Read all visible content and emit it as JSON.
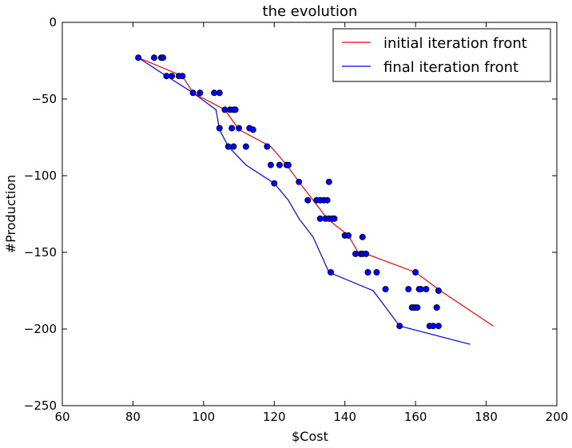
{
  "chart_data": {
    "type": "scatter",
    "title": "the evolution",
    "xlabel": "$Cost",
    "ylabel": "#Production",
    "xlim": [
      60,
      200
    ],
    "ylim": [
      -250,
      0
    ],
    "x_ticks": [
      60,
      80,
      100,
      120,
      140,
      160,
      180,
      200
    ],
    "y_ticks": [
      0,
      -50,
      -100,
      -150,
      -200,
      -250
    ],
    "x_tick_labels": [
      "60",
      "80",
      "100",
      "120",
      "140",
      "160",
      "180",
      "200"
    ],
    "y_tick_labels": [
      "0",
      "−50",
      "−100",
      "−150",
      "−200",
      "−250"
    ],
    "grid": false,
    "legend_position": "top-right",
    "legend": [
      {
        "label": "initial iteration front",
        "color": "#ff0000"
      },
      {
        "label": "final iteration front",
        "color": "#0000ff"
      }
    ],
    "series": [
      {
        "name": "initial iteration front",
        "kind": "line",
        "color": "#ff0000",
        "x": [
          81.5,
          94,
          97,
          106,
          110,
          119,
          123.5,
          127,
          135,
          141,
          144,
          146,
          160,
          167,
          182
        ],
        "y": [
          -23,
          -35,
          -46,
          -57,
          -70,
          -81,
          -93,
          -104,
          -128,
          -139,
          -151,
          -151,
          -163,
          -175,
          -198
        ]
      },
      {
        "name": "final iteration front",
        "kind": "line",
        "color": "#0000ff",
        "x": [
          81.5,
          89.5,
          97,
          103.5,
          104.5,
          107,
          112,
          120,
          124,
          127,
          131,
          135.5,
          148,
          155.5,
          175.5
        ],
        "y": [
          -23,
          -35,
          -46,
          -57,
          -70,
          -81,
          -93,
          -105,
          -116,
          -128,
          -140,
          -163,
          -175,
          -198,
          -210
        ]
      },
      {
        "name": "",
        "kind": "scatter",
        "color": "#0000ff",
        "edge": "#000000",
        "x": [
          81.5,
          86,
          88,
          88.5,
          89.5,
          91,
          93,
          94,
          97,
          99,
          103,
          104.5,
          106,
          107.5,
          108.5,
          109,
          104.5,
          108,
          110,
          113,
          114,
          107,
          108.5,
          112,
          118,
          119,
          121.5,
          123.5,
          124,
          127,
          129.5,
          132,
          133,
          134,
          135,
          135.5,
          133,
          134.5,
          135.5,
          136.5,
          137,
          140,
          141,
          143,
          144.5,
          145,
          146,
          146.5,
          145,
          149,
          151.5,
          158,
          159.5,
          159,
          160,
          160.5,
          161,
          161.5,
          163,
          164,
          165,
          166,
          166.5,
          166.5,
          160,
          166,
          155.5,
          136,
          120
        ],
        "y": [
          -23,
          -23,
          -23,
          -23,
          -35,
          -35,
          -35,
          -35,
          -46,
          -46,
          -46,
          -46,
          -57,
          -57,
          -57,
          -57,
          -69,
          -69,
          -69,
          -69,
          -70,
          -81,
          -81,
          -81,
          -81,
          -93,
          -93,
          -93,
          -93,
          -104,
          -116,
          -116,
          -116,
          -116,
          -116,
          -104,
          -128,
          -128,
          -128,
          -128,
          -128,
          -139,
          -139,
          -151,
          -151,
          -151,
          -151,
          -163,
          -140,
          -163,
          -174,
          -174,
          -186,
          -186,
          -186,
          -186,
          -174,
          -174,
          -174,
          -198,
          -198,
          -186,
          -175,
          -198,
          -163,
          -186,
          -198,
          -163,
          -105
        ]
      }
    ]
  }
}
